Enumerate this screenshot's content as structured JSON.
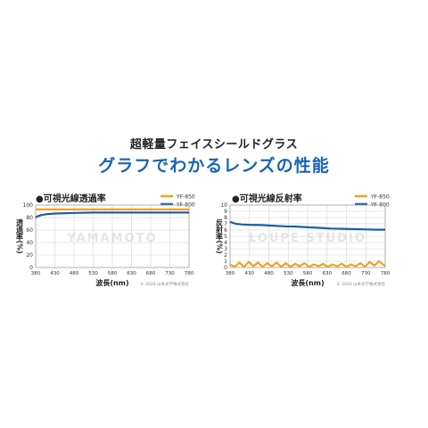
{
  "header": {
    "subtitle": "超軽量フェイスシールドグラス",
    "title": "グラフでわかるレンズの性能"
  },
  "chart_data": [
    {
      "type": "line",
      "title": "●可視光線透過率",
      "xlabel": "波長(nm)",
      "ylabel": "透過率(%)",
      "xlim": [
        380,
        780
      ],
      "ylim": [
        0,
        100
      ],
      "xticks": [
        380,
        430,
        480,
        530,
        580,
        630,
        680,
        730,
        780
      ],
      "yticks": [
        0,
        20,
        40,
        60,
        80,
        100
      ],
      "grid": true,
      "legend": "top-right",
      "watermark": "YAMAMOTO",
      "copyright": "© 2020 山本光学株式会社",
      "series": [
        {
          "name": "YF-850",
          "color": "#f0a323",
          "x": [
            380,
            400,
            430,
            480,
            530,
            580,
            630,
            680,
            730,
            780
          ],
          "y": [
            93,
            93,
            93,
            93,
            93,
            93,
            93,
            93,
            93,
            93
          ]
        },
        {
          "name": "YF-800",
          "color": "#1b5ea8",
          "x": [
            380,
            385,
            395,
            410,
            430,
            455,
            480,
            530,
            580,
            630,
            680,
            730,
            780
          ],
          "y": [
            80,
            82,
            84,
            85.5,
            86.5,
            87,
            87.5,
            88,
            88,
            88,
            88,
            88,
            88
          ]
        }
      ]
    },
    {
      "type": "line",
      "title": "●可視光線反射率",
      "xlabel": "波長(nm)",
      "ylabel": "反射率(%)",
      "xlim": [
        380,
        780
      ],
      "ylim": [
        0,
        10
      ],
      "xticks": [
        380,
        430,
        480,
        530,
        580,
        630,
        680,
        730,
        780
      ],
      "yticks": [
        0,
        1,
        2,
        3,
        4,
        5,
        6,
        7,
        8,
        9,
        10
      ],
      "grid": true,
      "legend": "top-right",
      "watermark": "LOUPE STUDIO",
      "copyright": "© 2020 山本光学株式会社",
      "series": [
        {
          "name": "YF-850",
          "color": "#f0a323",
          "x": [
            380,
            392,
            404,
            416,
            428,
            440,
            452,
            464,
            476,
            488,
            500,
            512,
            524,
            536,
            548,
            560,
            572,
            584,
            596,
            608,
            620,
            632,
            644,
            656,
            668,
            680,
            692,
            704,
            716,
            728,
            740,
            752,
            764,
            776,
            780
          ],
          "y": [
            0.5,
            0.1,
            0.8,
            0.1,
            0.9,
            0.2,
            0.8,
            0.1,
            0.7,
            0.2,
            0.8,
            0.1,
            0.7,
            0.1,
            0.6,
            0.2,
            0.7,
            0.1,
            0.5,
            0.2,
            0.6,
            0.1,
            0.5,
            0.2,
            0.6,
            0.1,
            0.5,
            0.2,
            0.7,
            0.1,
            0.9,
            0.3,
            1.0,
            0.4,
            0.3
          ]
        },
        {
          "name": "YF-800",
          "color": "#1b5ea8",
          "x": [
            380,
            385,
            395,
            410,
            430,
            460,
            490,
            520,
            550,
            580,
            610,
            640,
            670,
            700,
            730,
            760,
            780
          ],
          "y": [
            7.3,
            7.2,
            7.0,
            6.9,
            6.85,
            6.8,
            6.7,
            6.6,
            6.55,
            6.45,
            6.35,
            6.25,
            6.2,
            6.15,
            6.1,
            6.05,
            6.05
          ]
        }
      ]
    }
  ]
}
